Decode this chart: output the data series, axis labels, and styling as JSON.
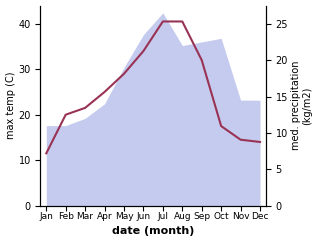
{
  "months": [
    "Jan",
    "Feb",
    "Mar",
    "Apr",
    "May",
    "Jun",
    "Jul",
    "Aug",
    "Sep",
    "Oct",
    "Nov",
    "Dec"
  ],
  "temperature": [
    11.5,
    20.0,
    21.5,
    25.0,
    29.0,
    34.0,
    40.5,
    40.5,
    32.0,
    17.5,
    14.5,
    14.0
  ],
  "precipitation": [
    11.0,
    11.0,
    12.0,
    14.0,
    19.0,
    23.5,
    26.5,
    22.0,
    22.5,
    23.0,
    14.5,
    14.5
  ],
  "temp_color": "#993355",
  "precip_fill_color": "#c5cbee",
  "precip_edge_color": "#a0a8d8",
  "left_ylabel": "max temp (C)",
  "right_ylabel": "med. precipitation\n(kg/m2)",
  "xlabel": "date (month)",
  "left_ylim": [
    0,
    44
  ],
  "right_ylim": [
    0,
    27.5
  ],
  "left_yticks": [
    0,
    10,
    20,
    30,
    40
  ],
  "right_yticks": [
    0,
    5,
    10,
    15,
    20,
    25
  ],
  "background_color": "#ffffff"
}
